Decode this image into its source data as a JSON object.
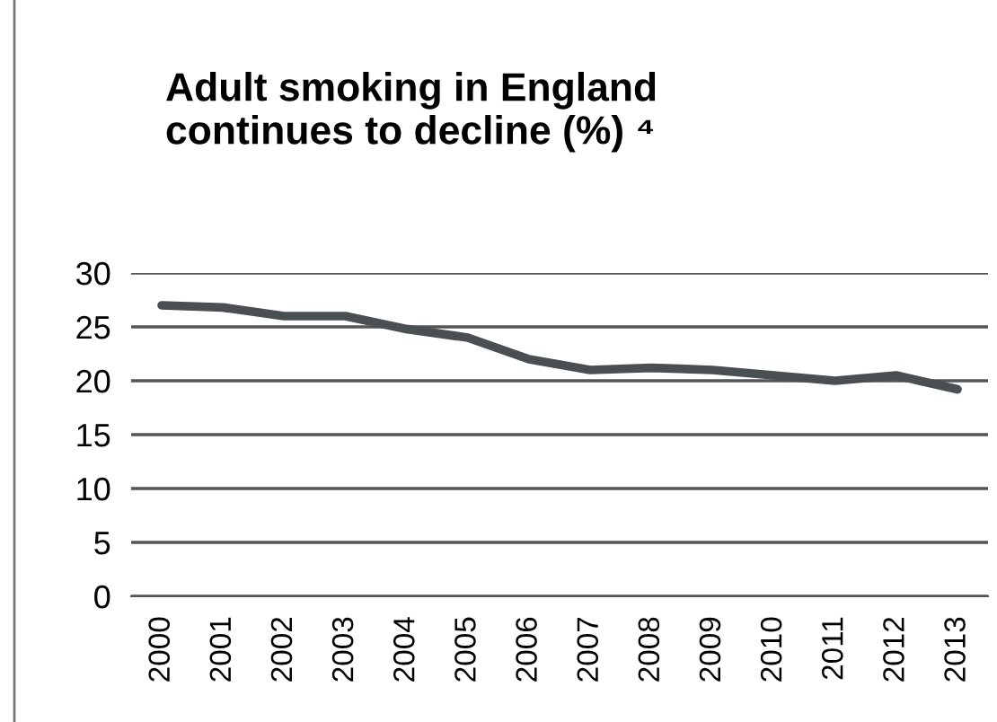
{
  "chart_data": {
    "type": "line",
    "title": "Adult smoking in England\ncontinues to decline (%) ⁴",
    "categories": [
      "2000",
      "2001",
      "2002",
      "2003",
      "2004",
      "2005",
      "2006",
      "2007",
      "2008",
      "2009",
      "2010",
      "2011",
      "2012",
      "2013"
    ],
    "series": [
      {
        "color": "#4a4f52",
        "values": [
          27,
          26.8,
          26,
          26,
          24.8,
          24,
          22,
          21,
          21.2,
          21,
          20.5,
          20,
          20.5,
          19.2
        ]
      }
    ],
    "ylim": [
      0,
      30
    ],
    "yticks": [
      0,
      5,
      10,
      15,
      20,
      25,
      30
    ],
    "grid": "y",
    "legend": false
  }
}
